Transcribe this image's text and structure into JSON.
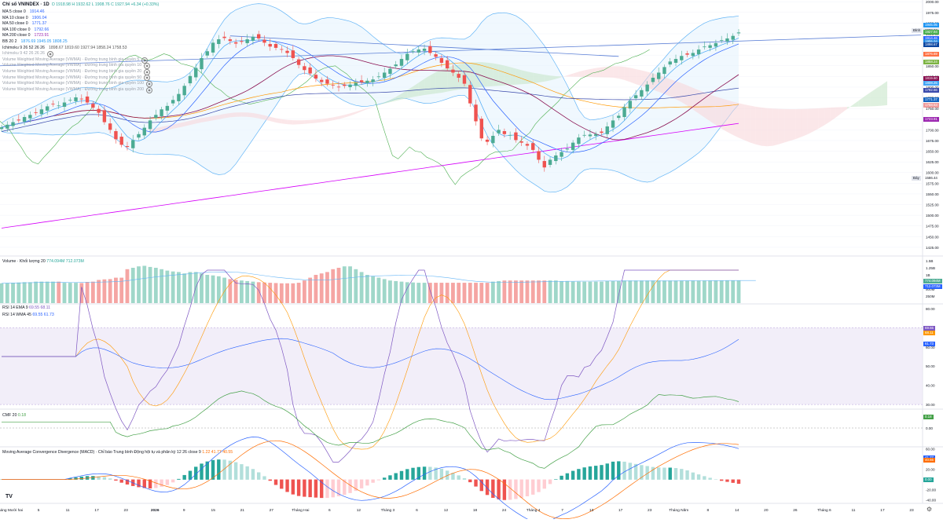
{
  "header": {
    "symbol": "Chỉ số VNINDEX · 1D",
    "ohlc": "O 1918.98  H 1932.62  L 1908.76  C 1927.94  +6.34 (+0.33%)"
  },
  "indicators": [
    {
      "label": "MA 5 close 0",
      "value": "1914.46",
      "color": "#2962ff"
    },
    {
      "label": "MA 10 close 0",
      "value": "1906.04",
      "color": "#2962ff"
    },
    {
      "label": "MA 50 close 0",
      "value": "1771.37",
      "color": "#2962ff"
    },
    {
      "label": "MA 100 close 0",
      "value": "1792.66",
      "color": "#2962ff"
    },
    {
      "label": "MA 200 close 0",
      "value": "1723.91",
      "color": "#9c27b0"
    },
    {
      "label": "BB 20 2",
      "value": "1876.69  1945.05  1808.25",
      "color": "#2196f3"
    },
    {
      "label": "Ichimoku 9 26 52 26 26",
      "value": "1898.67  1819.60  1927.94  1858.24  1758.53",
      "color": "#555555"
    },
    {
      "label": "Ichimoku 9 42 26 26 26",
      "value": "",
      "color": "#9aa0ab"
    },
    {
      "label": "Volume Weighted Moving Average (VWMA) · Đường trung bình gia quyền 5",
      "value": "",
      "color": "#9aa0ab"
    },
    {
      "label": "Volume Weighted Moving Average (VWMA) · Đường trung bình gia quyền 10",
      "value": "",
      "color": "#9aa0ab"
    },
    {
      "label": "Volume Weighted Moving Average (VWMA) · Đường trung bình gia quyền 20",
      "value": "",
      "color": "#9aa0ab"
    },
    {
      "label": "Volume Weighted Moving Average (VWMA) · Đường trung bình gia quyền 50",
      "value": "",
      "color": "#9aa0ab"
    },
    {
      "label": "Volume Weighted Moving Average (VWMA) · Đường trung bình gia quyền 100",
      "value": "",
      "color": "#9aa0ab"
    },
    {
      "label": "Volume Weighted Moving Average (VWMA) · Đường trung bình gia quyền 200",
      "value": "",
      "color": "#9aa0ab"
    }
  ],
  "colors": {
    "up": "#4cab93",
    "down": "#ef5350",
    "volume_up": "#9fd7c9",
    "volume_down": "#f5a5a3",
    "ma": "#2962ff",
    "ma_orange": "#ff9800",
    "ma_purple": "#d500f9",
    "bb": "#64b5f6",
    "cloud_green": "#c8e6c9",
    "cloud_red": "#f8d7da",
    "kijun": "#880e4f",
    "chikou": "#4caf50",
    "rsi_band": "#ede7f6",
    "cmf": "#43a047",
    "macd": "#2962ff",
    "signal": "#ff6d00"
  },
  "price_axis": {
    "ticks": [
      "2000.00",
      "1975.00",
      "1950.00",
      "1925.00",
      "1900.00",
      "1875.00",
      "1850.00",
      "1825.00",
      "1800.00",
      "1775.00",
      "1750.00",
      "1725.00",
      "1700.00",
      "1675.00",
      "1650.00",
      "1625.00",
      "1600.00",
      "1575.00",
      "1550.00",
      "1525.00",
      "1500.00",
      "1475.00",
      "1450.00",
      "1425.00"
    ],
    "tags": [
      {
        "text": "1945.05",
        "color": "#2196f3"
      },
      {
        "text": "1932.62",
        "color": "#e0e3eb",
        "dark": true
      },
      {
        "text": "1927.94",
        "color": "#4cab93"
      },
      {
        "text": "1927.94",
        "color": "#4caf50"
      },
      {
        "text": "1914.46",
        "color": "#2962ff"
      },
      {
        "text": "1906.04",
        "color": "#1e88e5"
      },
      {
        "text": "1898.67",
        "color": "#0d47a1"
      },
      {
        "text": "1876.69",
        "color": "#ff7043"
      },
      {
        "text": "1858.24",
        "color": "#7cb342"
      },
      {
        "text": "1819.60",
        "color": "#880e4f"
      },
      {
        "text": "1808.25",
        "color": "#42a5f5"
      },
      {
        "text": "1792.66",
        "color": "#3949ab"
      },
      {
        "text": "1771.37",
        "color": "#1565c0"
      },
      {
        "text": "1758.53",
        "color": "#ef9a9a"
      },
      {
        "text": "1723.91",
        "color": "#9c27b0"
      }
    ],
    "top_label": "Đỉnh",
    "bottom_label": "Đáy",
    "bottom_value": "1586.44"
  },
  "volume": {
    "title": "Volume · Khối lượng 20",
    "values_text": "774.094M  712.073M",
    "ticks": [
      "1.5B",
      "1.25B",
      "1B",
      "750M",
      "500M",
      "250M"
    ],
    "tags": [
      {
        "text": "774.094M",
        "color": "#4cab93"
      },
      {
        "text": "712.073M",
        "color": "#2962ff"
      }
    ]
  },
  "rsi": {
    "title1": "RSI 14 EMA 9",
    "values1": "69.55  68.11",
    "title2": "RSI 14 WMA 45",
    "values2": "69.55  61.73",
    "ticks": [
      "80.00",
      "70.00",
      "60.00",
      "50.00",
      "40.00",
      "30.00"
    ],
    "tags": [
      {
        "text": "69.55",
        "color": "#7e57c2"
      },
      {
        "text": "68.11",
        "color": "#ff9800"
      },
      {
        "text": "61.73",
        "color": "#2962ff"
      }
    ]
  },
  "cmf": {
    "title": "CMF 20",
    "value": "0.18",
    "ticks": [
      "0.18",
      "0.00"
    ],
    "tag": "0.18"
  },
  "macd": {
    "title": "Moving Average Convergence Divergence (MACD) · Chỉ báo Trung bình Động hội tụ và phân kỳ  12 26 close 9",
    "values": "1.22  41.77  40.55",
    "ticks": [
      "60.00",
      "40.00",
      "20.00",
      "0.00",
      "-20.00",
      "-40.00"
    ],
    "tags": [
      {
        "text": "41.77",
        "color": "#2962ff"
      },
      {
        "text": "40.55",
        "color": "#ff6d00"
      },
      {
        "text": "0.00",
        "color": "#26a69a"
      }
    ]
  },
  "time_axis": [
    "Tháng Mười hai",
    "5",
    "11",
    "17",
    "23",
    "2026",
    "9",
    "15",
    "21",
    "27",
    "Tháng Hai",
    "6",
    "12",
    "Tháng 3",
    "6",
    "12",
    "18",
    "24",
    "Tháng 4",
    "7",
    "13",
    "17",
    "23",
    "Tháng Năm",
    "8",
    "14",
    "20",
    "26",
    "Tháng 6",
    "11",
    "17",
    "23"
  ],
  "chart_data": {
    "type": "candlestick",
    "price_range": [
      1412,
      2004
    ],
    "closes": [
      1706,
      1712,
      1718,
      1722,
      1730,
      1735,
      1740,
      1748,
      1755,
      1760,
      1757,
      1764,
      1770,
      1776,
      1772,
      1764,
      1752,
      1740,
      1718,
      1700,
      1678,
      1665,
      1660,
      1676,
      1690,
      1705,
      1722,
      1735,
      1748,
      1756,
      1770,
      1784,
      1803,
      1826,
      1845,
      1868,
      1884,
      1904,
      1912,
      1915,
      1908,
      1902,
      1906,
      1912,
      1918,
      1914,
      1904,
      1895,
      1892,
      1888,
      1880,
      1868,
      1852,
      1840,
      1832,
      1820,
      1812,
      1808,
      1804,
      1800,
      1803,
      1806,
      1810,
      1812,
      1815,
      1818,
      1825,
      1834,
      1843,
      1853,
      1866,
      1878,
      1884,
      1888,
      1890,
      1880,
      1871,
      1857,
      1844,
      1834,
      1822,
      1808,
      1762,
      1720,
      1680,
      1672,
      1686,
      1700,
      1690,
      1688,
      1676,
      1670,
      1663,
      1653,
      1630,
      1612,
      1630,
      1640,
      1648,
      1656,
      1670,
      1682,
      1688,
      1689,
      1690,
      1693,
      1708,
      1722,
      1733,
      1753,
      1768,
      1781,
      1793,
      1806,
      1822,
      1834,
      1847,
      1860,
      1866,
      1873,
      1876,
      1880,
      1888,
      1895,
      1898,
      1903,
      1910,
      1914,
      1920,
      1928
    ],
    "volume_values": [
      700,
      710,
      720,
      730,
      740,
      740,
      760,
      760,
      760,
      760,
      760,
      720,
      720,
      720,
      710,
      750,
      760,
      820,
      840,
      850,
      900,
      900,
      1200,
      1250,
      1300,
      1320,
      1280,
      1250,
      1200,
      1150,
      1120,
      1100,
      1050,
      1100,
      1100,
      1050,
      1000,
      980,
      950,
      900,
      850,
      820,
      800,
      780,
      760,
      740,
      730,
      720,
      710,
      700,
      700,
      700,
      720,
      800,
      900,
      1000,
      1050,
      1100,
      1200,
      1250,
      1300,
      1300,
      1200,
      1100,
      1000,
      950,
      900,
      850,
      800,
      780,
      760,
      740,
      730,
      720,
      720,
      720,
      720,
      720,
      720,
      720,
      720,
      720,
      720,
      720,
      720,
      720,
      760,
      780,
      800,
      800,
      800,
      800,
      800,
      800,
      800,
      800,
      800,
      800,
      780,
      780,
      760,
      760,
      760,
      760,
      760,
      760,
      780,
      780,
      780,
      800,
      800,
      800,
      800,
      800,
      800,
      800,
      800,
      800,
      800,
      800,
      800,
      800,
      800,
      800,
      800,
      800,
      800,
      800,
      800,
      800,
      800,
      800,
      774
    ]
  }
}
